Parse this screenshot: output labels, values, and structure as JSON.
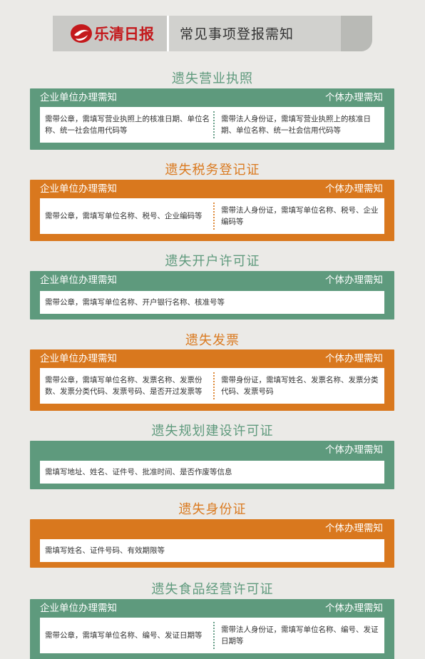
{
  "header": {
    "logo_text": "乐清日报",
    "title": "常见事项登报需知"
  },
  "sections": [
    {
      "title": "遗失营业执照",
      "color": "#5e9a7d",
      "left_label": "企业单位办理需知",
      "right_label": "个体办理需知",
      "left_text": "需带公章，需填写营业执照上的核准日期、单位名称、统一社会信用代码等",
      "right_text": "需带法人身份证，需填写营业执照上的核准日期、单位名称、统一社会信用代码等"
    },
    {
      "title": "遗失税务登记证",
      "color": "#d9781e",
      "left_label": "企业单位办理需知",
      "right_label": "个体办理需知",
      "left_text": "需带公章，需填写单位名称、税号、企业编码等",
      "right_text": "需带法人身份证，需填写单位名称、税号、企业编码等"
    },
    {
      "title": "遗失开户许可证",
      "color": "#5e9a7d",
      "left_label": "企业单位办理需知",
      "right_label": "个体办理需知",
      "full_text": "需带公章，需填写单位名称、开户银行名称、核准号等"
    },
    {
      "title": "遗失发票",
      "color": "#d9781e",
      "left_label": "企业单位办理需知",
      "right_label": "个体办理需知",
      "left_text": "需带公章，需填写单位名称、发票名称、发票份数、发票分类代码、发票号码、是否开过发票等",
      "right_text": "需带身份证，需填写姓名、发票名称、发票分类代码、发票号码"
    },
    {
      "title": "遗失规划建设许可证",
      "color": "#5e9a7d",
      "right_label": "个体办理需知",
      "full_text": "需填写地址、姓名、证件号、批准时间、是否作废等信息"
    },
    {
      "title": "遗失身份证",
      "color": "#d9781e",
      "right_label": "个体办理需知",
      "full_text": "需填写姓名、证件号码、有效期限等"
    },
    {
      "title": "遗失食品经营许可证",
      "color": "#5e9a7d",
      "left_label": "企业单位办理需知",
      "right_label": "个体办理需知",
      "left_text": "需带公章，需填写单位名称、编号、发证日期等",
      "right_text": "需带法人身份证，需填写单位名称、编号、发证日期等"
    }
  ]
}
